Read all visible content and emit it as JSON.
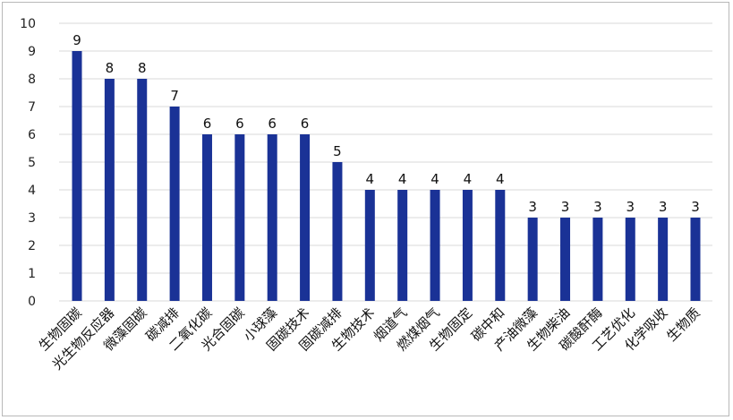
{
  "chart_data": {
    "type": "bar",
    "categories": [
      "生物固碳",
      "光生物反应器",
      "微藻固碳",
      "碳减排",
      "二氧化碳",
      "光合固碳",
      "小球藻",
      "固碳技术",
      "固碳减排",
      "生物技术",
      "烟道气",
      "燃煤烟气",
      "生物固定",
      "碳中和",
      "产油微藻",
      "生物柴油",
      "碳酸酐酶",
      "工艺优化",
      "化学吸收",
      "生物质"
    ],
    "values": [
      9,
      8,
      8,
      7,
      6,
      6,
      6,
      6,
      5,
      4,
      4,
      4,
      4,
      4,
      3,
      3,
      3,
      3,
      3,
      3
    ],
    "ylim": [
      0,
      10
    ],
    "yticks": [
      "0",
      "1",
      "2",
      "3",
      "4",
      "5",
      "6",
      "7",
      "8",
      "9",
      "10"
    ],
    "grid": true,
    "legend": "none",
    "bar_color": "#1a3296",
    "grid_color": "#d9d9d9"
  }
}
